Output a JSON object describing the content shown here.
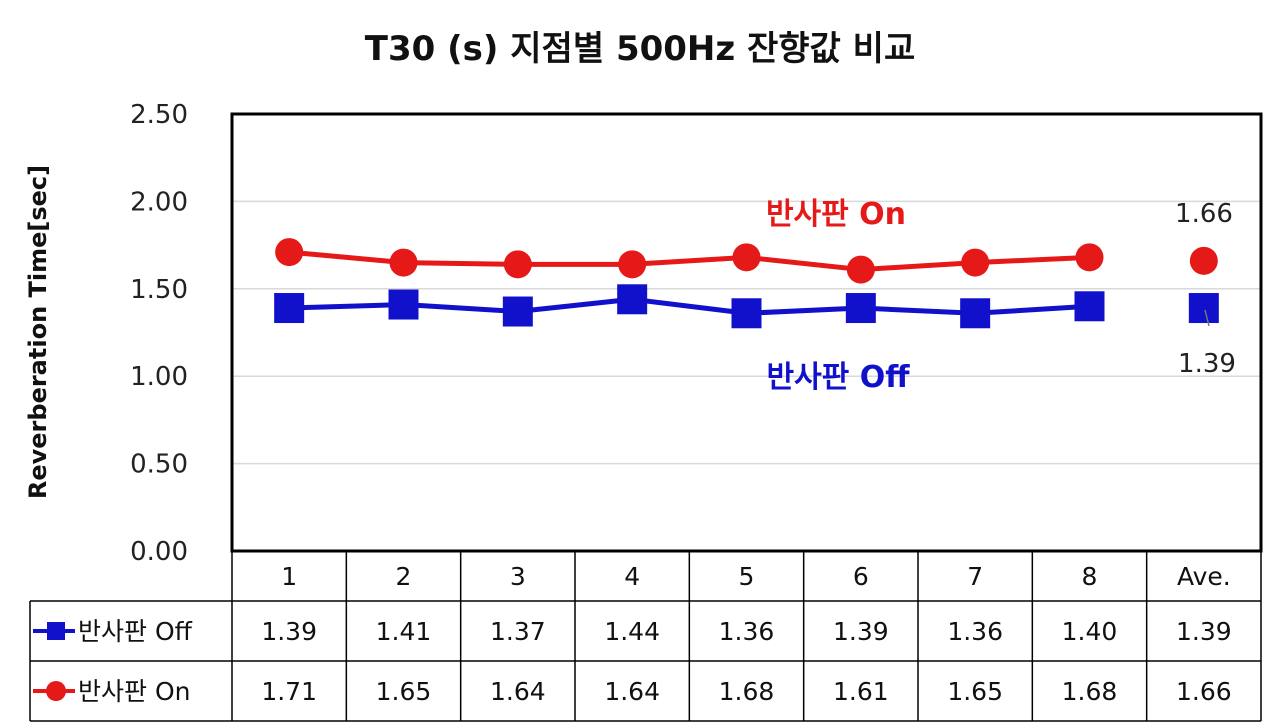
{
  "chart_data": {
    "type": "line",
    "title": "T30 (s) 지점별 500Hz 잔향값 비교",
    "ylabel": "Reverberation Time[sec]",
    "xlabel": "",
    "ylim": [
      0,
      2.5
    ],
    "yticks": [
      "0.00",
      "0.50",
      "1.00",
      "1.50",
      "2.00",
      "2.50"
    ],
    "ytick_values": [
      0,
      0.5,
      1.0,
      1.5,
      2.0,
      2.5
    ],
    "grid": true,
    "categories": [
      "1",
      "2",
      "3",
      "4",
      "5",
      "6",
      "7",
      "8",
      "Ave."
    ],
    "series": [
      {
        "name": "반사판 Off",
        "color": "#1111cc",
        "marker": "square",
        "values": [
          1.39,
          1.41,
          1.37,
          1.44,
          1.36,
          1.39,
          1.36,
          1.4,
          1.39
        ],
        "labels": [
          "1.39",
          "1.41",
          "1.37",
          "1.44",
          "1.36",
          "1.39",
          "1.36",
          "1.40",
          "1.39"
        ]
      },
      {
        "name": "반사판 On",
        "color": "#e61919",
        "marker": "circle",
        "values": [
          1.71,
          1.65,
          1.64,
          1.64,
          1.68,
          1.61,
          1.65,
          1.68,
          1.66
        ],
        "labels": [
          "1.71",
          "1.65",
          "1.64",
          "1.64",
          "1.68",
          "1.61",
          "1.65",
          "1.68",
          "1.66"
        ]
      }
    ],
    "annotations": {
      "on_label": "반사판 On",
      "off_label": "반사판 Off",
      "ave_on_value": "1.66",
      "ave_off_value": "1.39"
    },
    "legend": "data-table-below"
  }
}
